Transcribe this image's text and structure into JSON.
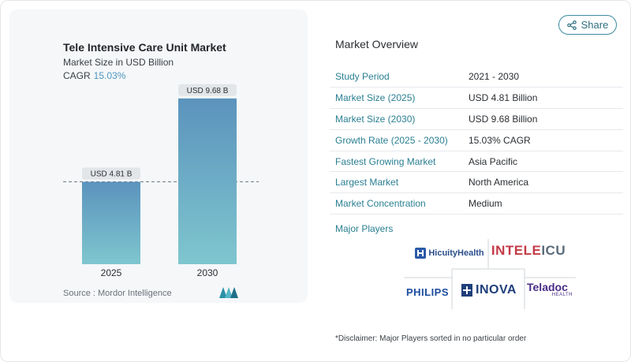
{
  "chart_data": {
    "type": "bar",
    "title": "Tele Intensive Care Unit Market",
    "subtitle": "Market Size in USD Billion",
    "cagr_label": "CAGR",
    "cagr_value": "15.03%",
    "categories": [
      "2025",
      "2030"
    ],
    "values": [
      4.81,
      9.68
    ],
    "data_labels": [
      "USD 4.81 B",
      "USD 9.68 B"
    ],
    "ylim": [
      0,
      10.5
    ],
    "reference_line_value": 4.81,
    "colors": {
      "bar_top": "#5b93bd",
      "bar_bottom": "#7fc6cf"
    }
  },
  "source": "Source :  Mordor Intelligence",
  "share": {
    "label": "Share",
    "icon": "share-icon"
  },
  "overview": {
    "title": "Market Overview",
    "rows": [
      {
        "key": "Study Period",
        "value": "2021 - 2030"
      },
      {
        "key": "Market Size (2025)",
        "value": "USD 4.81 Billion"
      },
      {
        "key": "Market Size (2030)",
        "value": "USD 9.68 Billion"
      },
      {
        "key": "Growth Rate (2025 - 2030)",
        "value": "15.03% CAGR"
      },
      {
        "key": "Fastest Growing Market",
        "value": "Asia Pacific"
      },
      {
        "key": "Largest Market",
        "value": "North America"
      },
      {
        "key": "Market Concentration",
        "value": "Medium"
      }
    ]
  },
  "players": {
    "title": "Major Players",
    "hicuity": "HicuityHealth",
    "inteleicu_a": "INTEL",
    "inteleicu_b": "E",
    "inteleicu_c": "ICU",
    "philips": "PHILIPS",
    "inova": "INOVA",
    "teladoc": "Teladoc",
    "teladoc_sub": "HEALTH"
  },
  "disclaimer": "*Disclaimer: Major Players sorted in no particular order"
}
